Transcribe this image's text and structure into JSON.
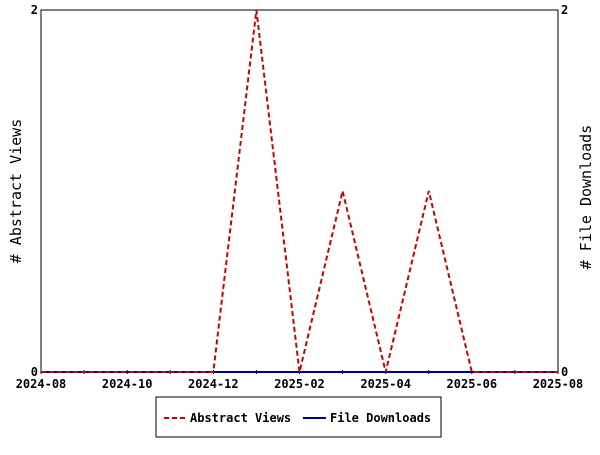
{
  "chart_data": {
    "type": "line",
    "x": [
      "2024-08",
      "2024-09",
      "2024-10",
      "2024-11",
      "2024-12",
      "2025-01",
      "2025-02",
      "2025-03",
      "2025-04",
      "2025-05",
      "2025-06",
      "2025-07",
      "2025-08"
    ],
    "xtick_labels": [
      "2024-08",
      "2024-10",
      "2024-12",
      "2025-02",
      "2025-04",
      "2025-06",
      "2025-08"
    ],
    "series": [
      {
        "name": "Abstract Views",
        "axis": "left",
        "color": "#cc0000",
        "style": "dashed",
        "values": [
          0,
          0,
          0,
          0,
          0,
          2,
          0,
          1,
          0,
          1,
          0,
          0,
          0
        ]
      },
      {
        "name": "File Downloads",
        "axis": "right",
        "color": "#000099",
        "style": "solid",
        "values": [
          0,
          0,
          0,
          0,
          0,
          0,
          0,
          0,
          0,
          0,
          0,
          0,
          0
        ]
      }
    ],
    "ylabel_left": "# Abstract Views",
    "ylabel_right": "# File Downloads",
    "ylim": [
      0,
      2
    ],
    "ytick_labels_left": [
      "0",
      "2"
    ],
    "ytick_labels_right": [
      "0",
      "2"
    ],
    "legend_position": "bottom-center",
    "grid": false
  }
}
